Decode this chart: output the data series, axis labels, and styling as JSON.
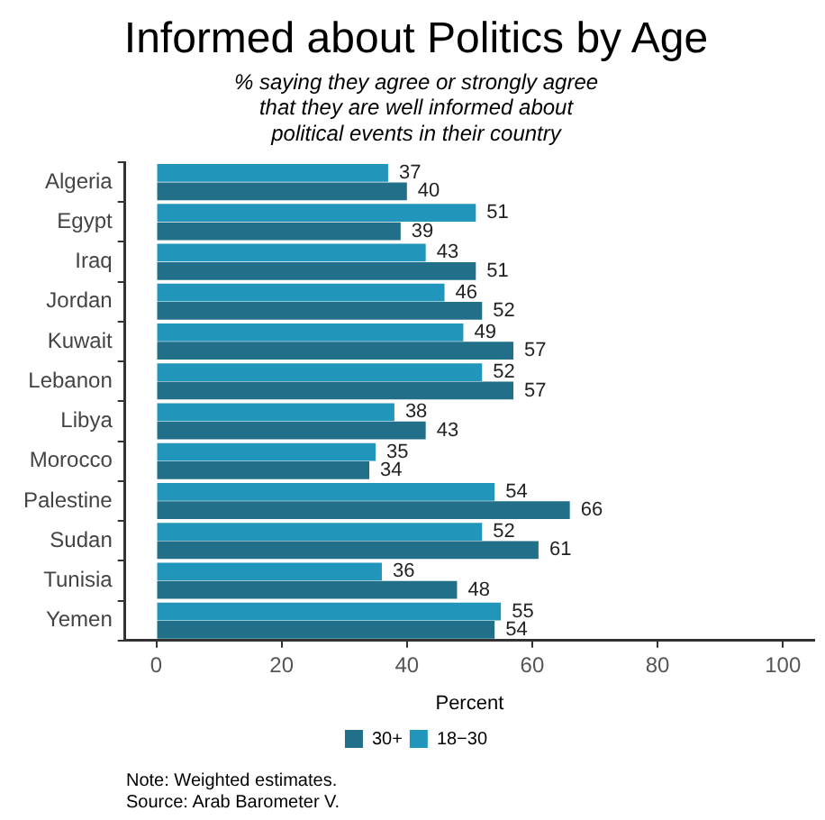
{
  "chart_data": {
    "type": "bar",
    "orientation": "horizontal",
    "title": "Informed about Politics by Age",
    "subtitle": "% saying they agree or strongly agree\nthat they are well informed about\npolitical events in their country",
    "xlabel": "Percent",
    "categories": [
      "Algeria",
      "Egypt",
      "Iraq",
      "Jordan",
      "Kuwait",
      "Lebanon",
      "Libya",
      "Morocco",
      "Palestine",
      "Sudan",
      "Tunisia",
      "Yemen"
    ],
    "series": [
      {
        "name": "18−30",
        "color": "#2196ba",
        "values": [
          37,
          51,
          43,
          46,
          49,
          52,
          38,
          35,
          54,
          52,
          36,
          55
        ]
      },
      {
        "name": "30+",
        "color": "#216f88",
        "values": [
          40,
          39,
          51,
          52,
          57,
          57,
          43,
          34,
          66,
          61,
          48,
          54
        ]
      }
    ],
    "xlim": [
      -5,
      105
    ],
    "xticks": [
      0,
      20,
      40,
      60,
      80,
      100
    ],
    "grid": false,
    "legend": "bottom",
    "data_labels": true,
    "annotations": [
      "Note: Weighted estimates.",
      "Source: Arab Barometer V."
    ]
  }
}
